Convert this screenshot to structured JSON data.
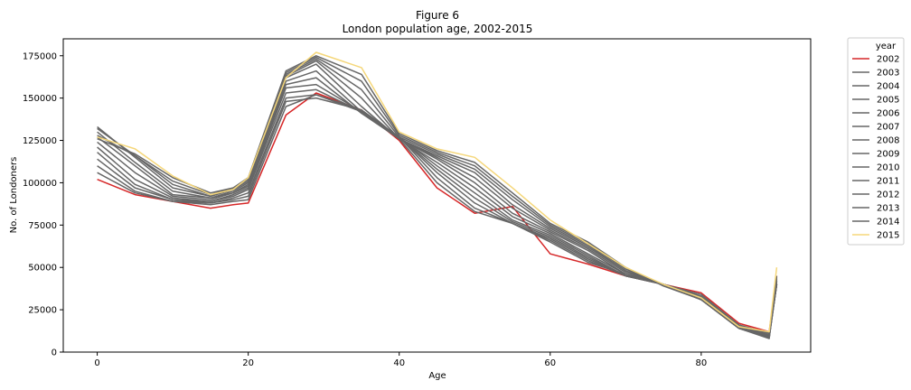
{
  "chart_data": {
    "type": "line",
    "title": "Figure 6",
    "subtitle": "London population age, 2002-2015",
    "xlabel": "Age",
    "ylabel": "No. of Londoners",
    "xlim": [
      -4.5,
      94.5
    ],
    "ylim": [
      0,
      185000
    ],
    "xticks": [
      0,
      20,
      40,
      60,
      80
    ],
    "yticks": [
      0,
      25000,
      50000,
      75000,
      100000,
      125000,
      150000,
      175000
    ],
    "grid": false,
    "legend": {
      "title": "year",
      "placement": "outside-top-right"
    },
    "colors": {
      "2002": "#d62728",
      "middle": "#666666",
      "2015": "#f5d77a"
    },
    "ages": [
      0,
      5,
      10,
      15,
      18,
      20,
      25,
      29,
      35,
      40,
      45,
      50,
      55,
      60,
      65,
      70,
      75,
      80,
      85,
      89,
      90
    ],
    "series": [
      {
        "name": "2002",
        "color": "#d62728",
        "values": [
          102000,
          93000,
          89000,
          85000,
          87000,
          88000,
          140000,
          153000,
          143000,
          125000,
          97000,
          82000,
          86000,
          58000,
          52000,
          45000,
          40000,
          35000,
          17000,
          12000,
          45000
        ]
      },
      {
        "name": "2003",
        "color": "#666666",
        "values": [
          106000,
          94000,
          89000,
          87000,
          89000,
          90000,
          145000,
          152000,
          143000,
          126000,
          100000,
          83000,
          76000,
          65000,
          53000,
          46000,
          40000,
          34000,
          16000,
          11000,
          44000
        ]
      },
      {
        "name": "2004",
        "color": "#666666",
        "values": [
          110000,
          95000,
          89000,
          88000,
          90000,
          92000,
          148000,
          150000,
          143000,
          127000,
          103000,
          85000,
          76000,
          66000,
          54000,
          45000,
          40000,
          33000,
          16000,
          11000,
          43000
        ]
      },
      {
        "name": "2005",
        "color": "#666666",
        "values": [
          114000,
          97000,
          90000,
          88000,
          91000,
          94000,
          150000,
          152000,
          142000,
          127000,
          106000,
          88000,
          76000,
          67000,
          55000,
          45000,
          40000,
          33000,
          16000,
          10000,
          42000
        ]
      },
      {
        "name": "2006",
        "color": "#666666",
        "values": [
          118000,
          99000,
          90000,
          89000,
          92000,
          96000,
          153000,
          155000,
          142000,
          127000,
          108000,
          91000,
          77000,
          68000,
          56000,
          45000,
          40000,
          32000,
          15000,
          10000,
          41000
        ]
      },
      {
        "name": "2007",
        "color": "#666666",
        "values": [
          121000,
          102000,
          91000,
          89000,
          93000,
          97000,
          156000,
          158000,
          142000,
          127000,
          110000,
          94000,
          78000,
          69000,
          57000,
          45000,
          40000,
          32000,
          15000,
          10000,
          40000
        ]
      },
      {
        "name": "2008",
        "color": "#666666",
        "values": [
          124000,
          106000,
          92000,
          90000,
          94000,
          98000,
          158000,
          162000,
          141000,
          126000,
          112000,
          97000,
          80000,
          70000,
          58000,
          46000,
          40000,
          31000,
          15000,
          10000,
          40000
        ]
      },
      {
        "name": "2009",
        "color": "#666666",
        "values": [
          127000,
          110000,
          93000,
          91000,
          94000,
          99000,
          160000,
          166000,
          142000,
          126000,
          114000,
          100000,
          82000,
          71000,
          60000,
          46000,
          40000,
          31000,
          15000,
          9500,
          40000
        ]
      },
      {
        "name": "2010",
        "color": "#666666",
        "values": [
          130000,
          112000,
          95000,
          91000,
          95000,
          100000,
          162000,
          170000,
          145000,
          126000,
          115000,
          103000,
          85000,
          72000,
          61000,
          47000,
          40000,
          31000,
          14000,
          9000,
          40000
        ]
      },
      {
        "name": "2011",
        "color": "#666666",
        "values": [
          133000,
          115000,
          97000,
          92000,
          96000,
          101000,
          163000,
          172000,
          150000,
          126000,
          116000,
          106000,
          87000,
          73000,
          62000,
          48000,
          40000,
          31000,
          14000,
          9000,
          40000
        ]
      },
      {
        "name": "2012",
        "color": "#666666",
        "values": [
          132000,
          116000,
          99000,
          92000,
          96000,
          101000,
          164000,
          173000,
          155000,
          127000,
          117000,
          108000,
          90000,
          74000,
          63000,
          48000,
          40000,
          31000,
          14000,
          8500,
          40000
        ]
      },
      {
        "name": "2013",
        "color": "#666666",
        "values": [
          128000,
          116000,
          101000,
          93000,
          97000,
          102000,
          165000,
          174000,
          160000,
          128000,
          118000,
          110000,
          92000,
          75000,
          64000,
          49000,
          40000,
          31000,
          14000,
          8500,
          42000
        ]
      },
      {
        "name": "2014",
        "color": "#666666",
        "values": [
          126000,
          117000,
          103000,
          94000,
          97000,
          103000,
          166000,
          175000,
          164000,
          129000,
          119000,
          112000,
          94000,
          76000,
          65000,
          50000,
          39000,
          31000,
          14000,
          8000,
          45000
        ]
      },
      {
        "name": "2015",
        "color": "#f5d77a",
        "values": [
          127000,
          120000,
          104000,
          93000,
          96000,
          103000,
          162000,
          177000,
          168000,
          130000,
          120000,
          115000,
          97000,
          78000,
          64000,
          50000,
          40000,
          32000,
          15000,
          12000,
          50000
        ]
      }
    ]
  }
}
